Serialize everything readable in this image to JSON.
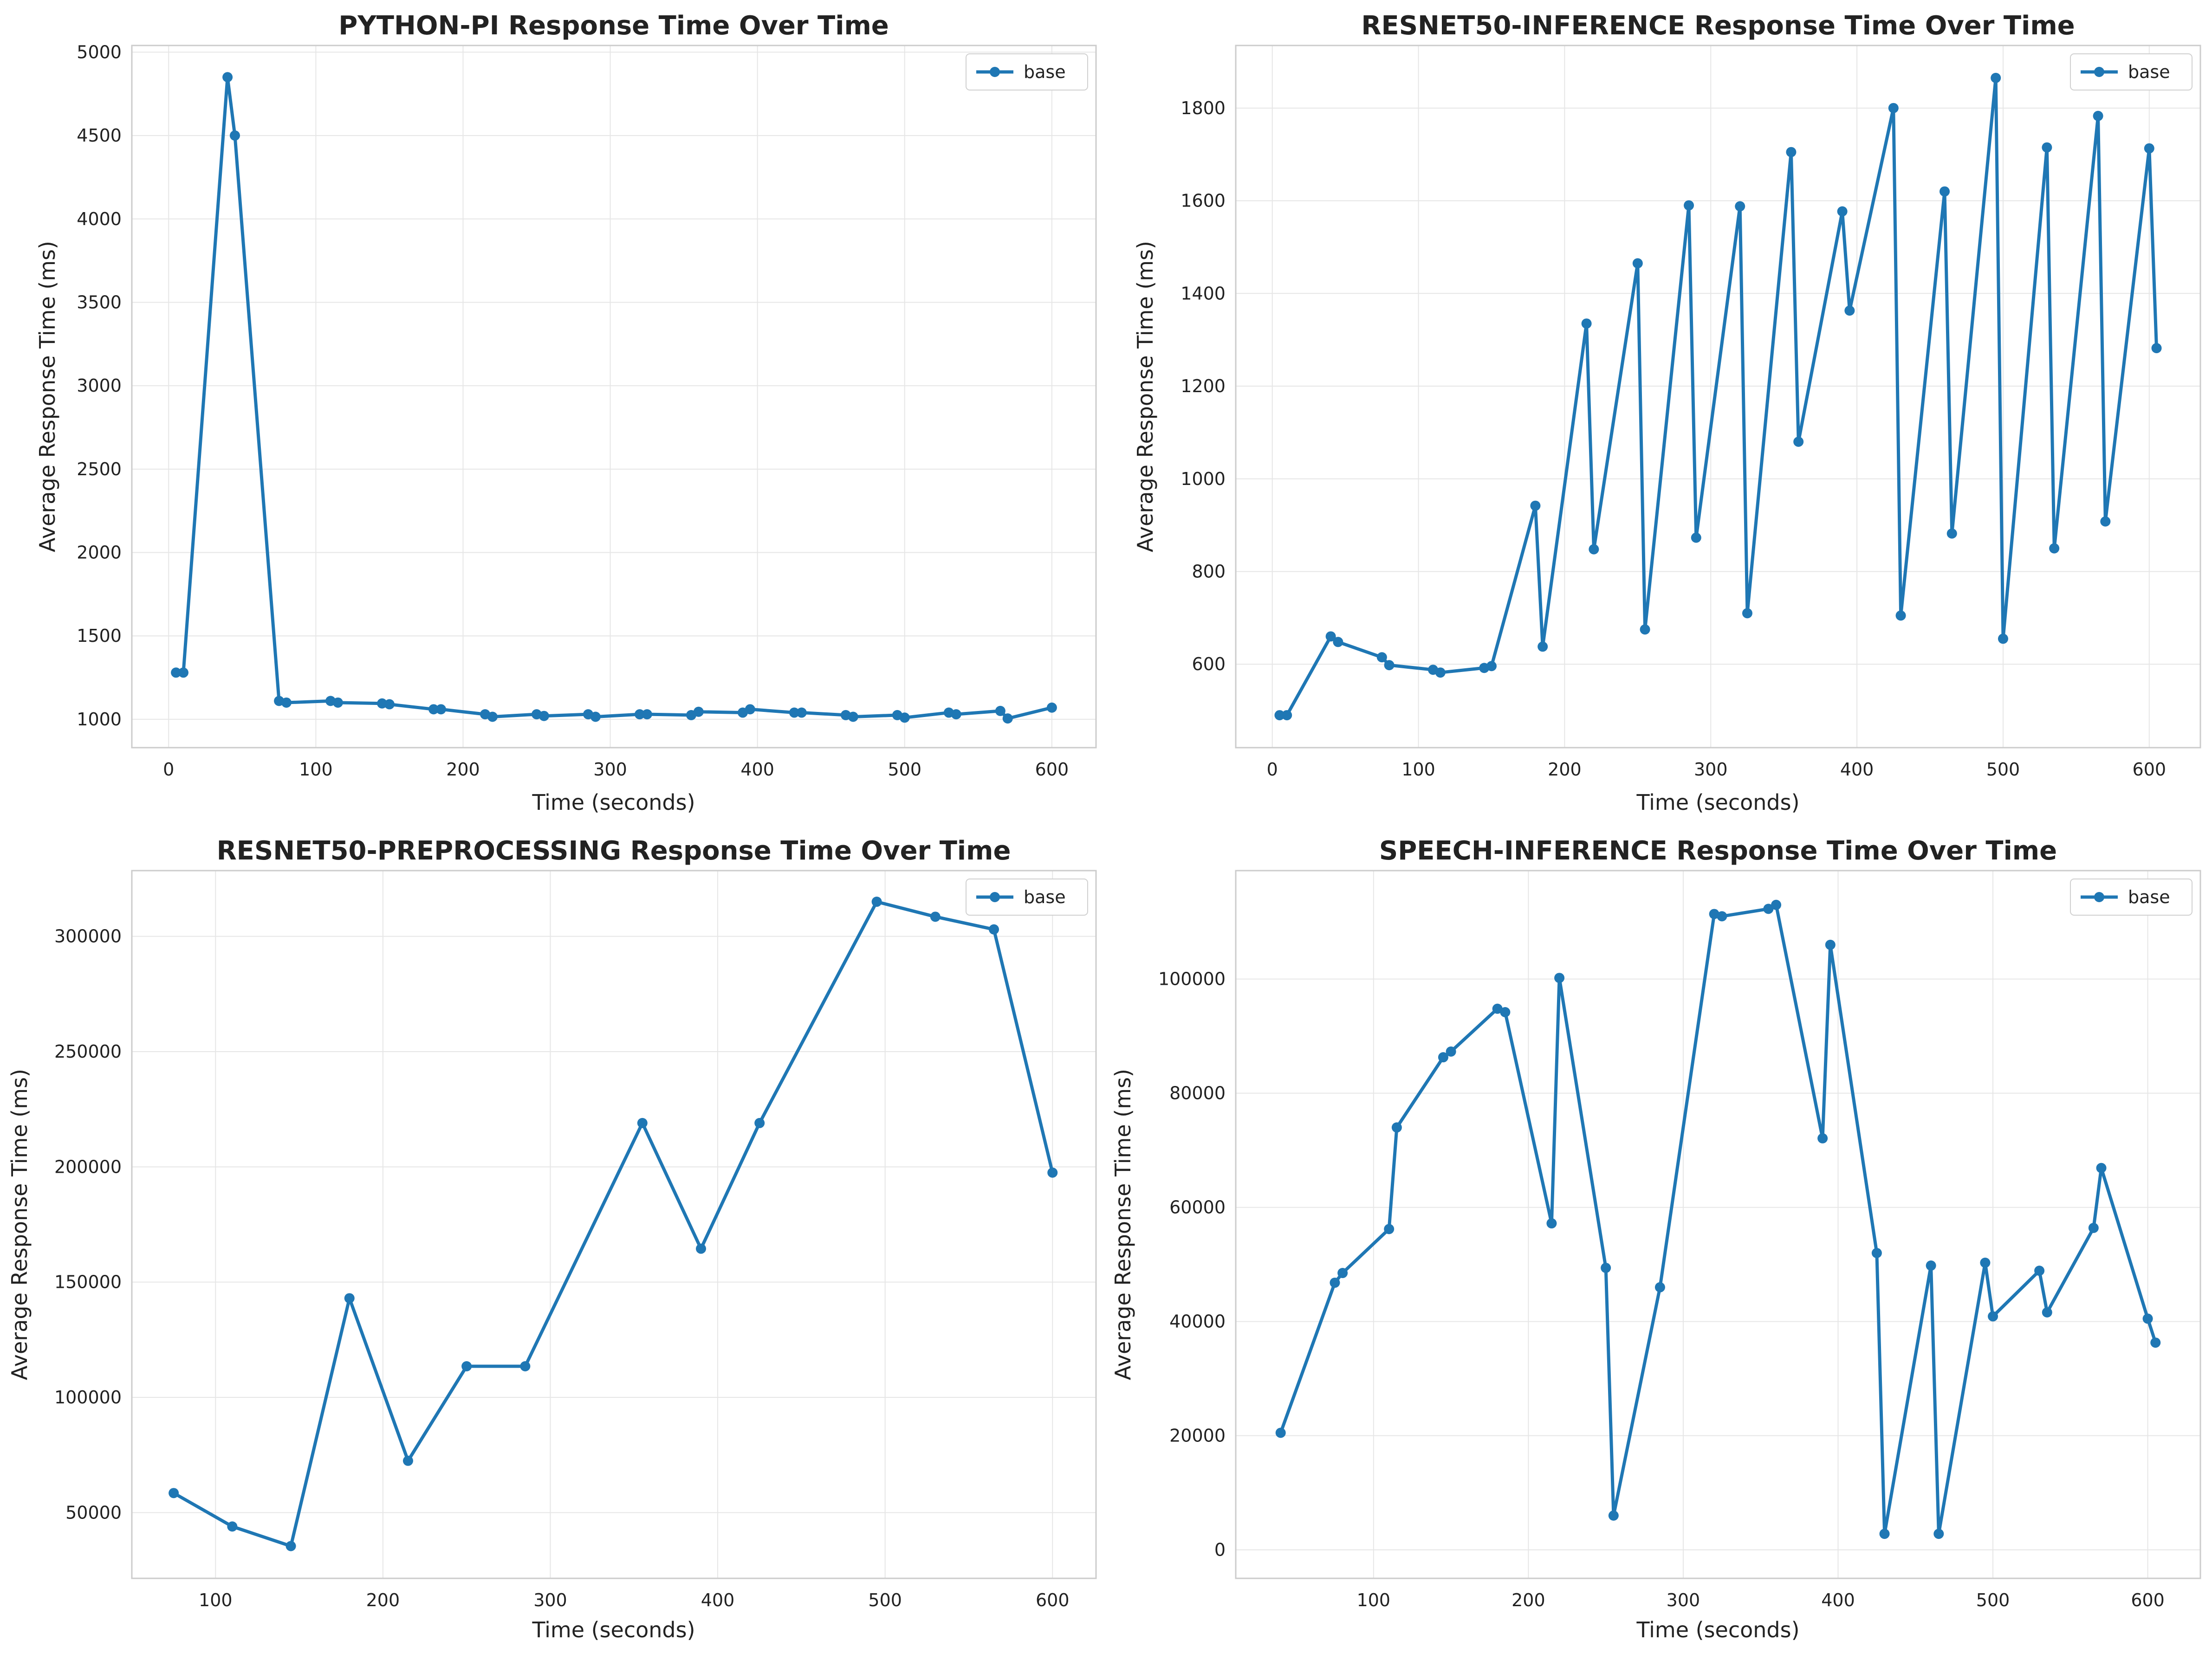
{
  "chart_data": [
    {
      "type": "line",
      "title": "PYTHON-PI Response Time Over Time",
      "xlabel": "Time (seconds)",
      "ylabel": "Average Response Time (ms)",
      "xlim": [
        -25,
        630
      ],
      "ylim": [
        830,
        5040
      ],
      "xticks": [
        0,
        100,
        200,
        300,
        400,
        500,
        600
      ],
      "yticks": [
        1000,
        1500,
        2000,
        2500,
        3000,
        3500,
        4000,
        4500,
        5000
      ],
      "grid": true,
      "legend": "top-right",
      "series": [
        {
          "name": "base",
          "color": "#1f77b4",
          "x": [
            5,
            10,
            40,
            45,
            75,
            80,
            110,
            115,
            145,
            150,
            180,
            185,
            215,
            220,
            250,
            255,
            285,
            290,
            320,
            325,
            355,
            360,
            390,
            395,
            425,
            430,
            460,
            465,
            495,
            500,
            530,
            535,
            565,
            570,
            600
          ],
          "y": [
            1280,
            1280,
            4850,
            4500,
            1110,
            1100,
            1110,
            1100,
            1095,
            1090,
            1060,
            1060,
            1030,
            1015,
            1030,
            1020,
            1030,
            1015,
            1030,
            1030,
            1025,
            1045,
            1040,
            1060,
            1040,
            1040,
            1025,
            1015,
            1025,
            1010,
            1040,
            1030,
            1050,
            1005,
            1070
          ]
        }
      ]
    },
    {
      "type": "line",
      "title": "RESNET50-INFERENCE Response Time Over Time",
      "xlabel": "Time (seconds)",
      "ylabel": "Average Response Time (ms)",
      "xlim": [
        -25,
        635
      ],
      "ylim": [
        420,
        1935
      ],
      "xticks": [
        0,
        100,
        200,
        300,
        400,
        500,
        600
      ],
      "yticks": [
        600,
        800,
        1000,
        1200,
        1400,
        1600,
        1800
      ],
      "grid": true,
      "legend": "top-right",
      "series": [
        {
          "name": "base",
          "color": "#1f77b4",
          "x": [
            5,
            10,
            40,
            45,
            75,
            80,
            110,
            115,
            145,
            150,
            180,
            185,
            215,
            220,
            250,
            255,
            285,
            290,
            320,
            325,
            355,
            360,
            390,
            395,
            425,
            430,
            460,
            465,
            495,
            500,
            530,
            535,
            565,
            570,
            600,
            605
          ],
          "y": [
            490,
            490,
            660,
            648,
            615,
            598,
            588,
            582,
            592,
            596,
            942,
            638,
            1335,
            848,
            1465,
            675,
            1590,
            873,
            1588,
            710,
            1705,
            1080,
            1577,
            1363,
            1800,
            705,
            1620,
            882,
            1865,
            655,
            1715,
            850,
            1783,
            908,
            1713,
            1282
          ]
        }
      ]
    },
    {
      "type": "line",
      "title": "RESNET50-PREPROCESSING Response Time Over Time",
      "xlabel": "Time (seconds)",
      "ylabel": "Average Response Time (ms)",
      "xlim": [
        50,
        626
      ],
      "ylim": [
        21500,
        328500
      ],
      "xticks": [
        100,
        200,
        300,
        400,
        500,
        600
      ],
      "yticks": [
        50000,
        100000,
        150000,
        200000,
        250000,
        300000
      ],
      "grid": true,
      "legend": "top-right",
      "series": [
        {
          "name": "base",
          "color": "#1f77b4",
          "x": [
            75,
            110,
            145,
            180,
            215,
            250,
            285,
            355,
            390,
            425,
            495,
            530,
            565,
            600
          ],
          "y": [
            58500,
            44000,
            35500,
            143000,
            72500,
            113500,
            113500,
            219000,
            164500,
            219000,
            315000,
            308500,
            303000,
            197500
          ]
        }
      ]
    },
    {
      "type": "line",
      "title": "SPEECH-INFERENCE Response Time Over Time",
      "xlabel": "Time (seconds)",
      "ylabel": "Average Response Time (ms)",
      "xlim": [
        11,
        634
      ],
      "ylim": [
        -5000,
        119000
      ],
      "xticks": [
        100,
        200,
        300,
        400,
        500,
        600
      ],
      "yticks": [
        0,
        20000,
        40000,
        60000,
        80000,
        100000
      ],
      "grid": true,
      "legend": "top-right",
      "series": [
        {
          "name": "base",
          "color": "#1f77b4",
          "x": [
            40,
            75,
            80,
            110,
            115,
            145,
            150,
            180,
            185,
            215,
            220,
            250,
            255,
            285,
            320,
            325,
            355,
            360,
            390,
            395,
            425,
            430,
            460,
            465,
            495,
            500,
            530,
            535,
            565,
            570,
            600,
            605
          ],
          "y": [
            20500,
            46800,
            48500,
            56200,
            74000,
            86300,
            87300,
            94800,
            94200,
            57200,
            100200,
            49400,
            6000,
            46000,
            111400,
            111000,
            112300,
            113000,
            72100,
            106000,
            52000,
            2800,
            49800,
            2800,
            50300,
            40900,
            48900,
            41600,
            56400,
            66900,
            40500,
            36300
          ]
        }
      ]
    }
  ]
}
